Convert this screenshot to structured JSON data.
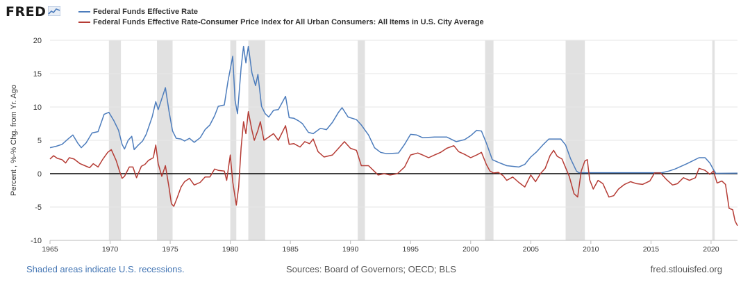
{
  "header": {
    "logo_text": "FRED",
    "logo_icon": "chart-line-icon"
  },
  "legend": [
    {
      "label": "Federal Funds Effective Rate",
      "color": "#4c7cbc"
    },
    {
      "label": "Federal Funds Effective Rate-Consumer Price Index for All Urban Consumers: All Items in U.S. City Average",
      "color": "#b53b34"
    }
  ],
  "footer": {
    "recessions_note": "Shaded areas indicate U.S. recessions.",
    "sources": "Sources: Board of Governors; OECD; BLS",
    "site": "fred.stlouisfed.org"
  },
  "chart_data": {
    "type": "line",
    "ylabel": "Percent , %-% Chg. from Yr. Ago",
    "xlim": [
      1965,
      2022.2
    ],
    "ylim": [
      -10,
      20
    ],
    "y_ticks": [
      -10,
      -5,
      0,
      5,
      10,
      15,
      20
    ],
    "x_ticks": [
      1965,
      1970,
      1975,
      1980,
      1985,
      1990,
      1995,
      2000,
      2005,
      2010,
      2015,
      2020
    ],
    "grid": "horizontal",
    "zero_line": true,
    "recessions": [
      [
        1969.9,
        1970.9
      ],
      [
        1973.9,
        1975.2
      ],
      [
        1980.0,
        1980.5
      ],
      [
        1981.5,
        1982.9
      ],
      [
        1990.6,
        1991.2
      ],
      [
        2001.2,
        2001.9
      ],
      [
        2007.9,
        2009.5
      ],
      [
        2020.1,
        2020.3
      ]
    ],
    "series": [
      {
        "name": "Federal Funds Effective Rate",
        "color": "#4c7cbc",
        "points": [
          [
            1965.0,
            3.9
          ],
          [
            1965.5,
            4.1
          ],
          [
            1966.0,
            4.4
          ],
          [
            1966.5,
            5.2
          ],
          [
            1966.9,
            5.8
          ],
          [
            1967.3,
            4.6
          ],
          [
            1967.6,
            3.9
          ],
          [
            1968.0,
            4.6
          ],
          [
            1968.5,
            6.1
          ],
          [
            1969.0,
            6.3
          ],
          [
            1969.5,
            8.9
          ],
          [
            1969.9,
            9.2
          ],
          [
            1970.3,
            8.0
          ],
          [
            1970.7,
            6.5
          ],
          [
            1971.0,
            4.4
          ],
          [
            1971.2,
            3.7
          ],
          [
            1971.5,
            5.0
          ],
          [
            1971.8,
            5.6
          ],
          [
            1972.0,
            3.6
          ],
          [
            1972.3,
            4.2
          ],
          [
            1972.7,
            4.9
          ],
          [
            1973.0,
            5.9
          ],
          [
            1973.5,
            8.5
          ],
          [
            1973.8,
            10.8
          ],
          [
            1974.0,
            9.6
          ],
          [
            1974.6,
            12.9
          ],
          [
            1974.9,
            9.4
          ],
          [
            1975.2,
            6.4
          ],
          [
            1975.5,
            5.3
          ],
          [
            1975.9,
            5.2
          ],
          [
            1976.2,
            4.9
          ],
          [
            1976.6,
            5.3
          ],
          [
            1977.0,
            4.7
          ],
          [
            1977.5,
            5.4
          ],
          [
            1977.9,
            6.6
          ],
          [
            1978.3,
            7.3
          ],
          [
            1978.7,
            8.7
          ],
          [
            1979.0,
            10.1
          ],
          [
            1979.5,
            10.3
          ],
          [
            1979.8,
            13.8
          ],
          [
            1980.2,
            17.6
          ],
          [
            1980.4,
            11.0
          ],
          [
            1980.6,
            9.0
          ],
          [
            1980.9,
            15.9
          ],
          [
            1981.1,
            19.1
          ],
          [
            1981.3,
            16.6
          ],
          [
            1981.5,
            19.1
          ],
          [
            1981.8,
            15.1
          ],
          [
            1982.1,
            13.2
          ],
          [
            1982.3,
            14.9
          ],
          [
            1982.6,
            10.1
          ],
          [
            1982.9,
            9.0
          ],
          [
            1983.2,
            8.5
          ],
          [
            1983.6,
            9.5
          ],
          [
            1984.0,
            9.6
          ],
          [
            1984.6,
            11.6
          ],
          [
            1984.9,
            8.4
          ],
          [
            1985.3,
            8.3
          ],
          [
            1985.7,
            7.9
          ],
          [
            1986.0,
            7.5
          ],
          [
            1986.5,
            6.2
          ],
          [
            1986.9,
            6.0
          ],
          [
            1987.5,
            6.8
          ],
          [
            1988.0,
            6.6
          ],
          [
            1988.5,
            7.7
          ],
          [
            1989.0,
            9.2
          ],
          [
            1989.3,
            9.9
          ],
          [
            1989.8,
            8.5
          ],
          [
            1990.5,
            8.1
          ],
          [
            1990.9,
            7.3
          ],
          [
            1991.5,
            5.8
          ],
          [
            1992.0,
            3.9
          ],
          [
            1992.5,
            3.2
          ],
          [
            1993.0,
            3.0
          ],
          [
            1994.0,
            3.1
          ],
          [
            1994.5,
            4.4
          ],
          [
            1995.0,
            5.9
          ],
          [
            1995.5,
            5.8
          ],
          [
            1996.0,
            5.4
          ],
          [
            1997.0,
            5.5
          ],
          [
            1998.0,
            5.5
          ],
          [
            1998.8,
            4.8
          ],
          [
            1999.5,
            5.1
          ],
          [
            2000.0,
            5.7
          ],
          [
            2000.5,
            6.5
          ],
          [
            2000.9,
            6.4
          ],
          [
            2001.3,
            4.6
          ],
          [
            2001.8,
            2.1
          ],
          [
            2002.3,
            1.7
          ],
          [
            2003.0,
            1.2
          ],
          [
            2004.0,
            1.0
          ],
          [
            2004.5,
            1.4
          ],
          [
            2005.0,
            2.5
          ],
          [
            2005.5,
            3.3
          ],
          [
            2006.0,
            4.3
          ],
          [
            2006.5,
            5.2
          ],
          [
            2007.5,
            5.2
          ],
          [
            2007.9,
            4.3
          ],
          [
            2008.3,
            2.3
          ],
          [
            2008.8,
            0.4
          ],
          [
            2009.0,
            0.15
          ],
          [
            2010.0,
            0.15
          ],
          [
            2015.9,
            0.15
          ],
          [
            2016.5,
            0.4
          ],
          [
            2017.0,
            0.7
          ],
          [
            2018.0,
            1.5
          ],
          [
            2019.0,
            2.4
          ],
          [
            2019.5,
            2.4
          ],
          [
            2019.9,
            1.6
          ],
          [
            2020.2,
            0.6
          ],
          [
            2020.4,
            0.05
          ],
          [
            2022.2,
            0.08
          ]
        ]
      },
      {
        "name": "Federal Funds Effective Rate-Consumer Price Index for All Urban Consumers: All Items in U.S. City Average",
        "color": "#b53b34",
        "points": [
          [
            1965.0,
            2.2
          ],
          [
            1965.3,
            2.7
          ],
          [
            1965.6,
            2.3
          ],
          [
            1966.0,
            2.1
          ],
          [
            1966.3,
            1.6
          ],
          [
            1966.6,
            2.4
          ],
          [
            1967.0,
            2.2
          ],
          [
            1967.5,
            1.5
          ],
          [
            1967.9,
            1.2
          ],
          [
            1968.3,
            0.9
          ],
          [
            1968.6,
            1.5
          ],
          [
            1969.0,
            1.0
          ],
          [
            1969.4,
            2.2
          ],
          [
            1969.8,
            3.2
          ],
          [
            1970.1,
            3.6
          ],
          [
            1970.5,
            2.0
          ],
          [
            1970.8,
            0.3
          ],
          [
            1971.0,
            -0.7
          ],
          [
            1971.2,
            -0.4
          ],
          [
            1971.6,
            1.0
          ],
          [
            1971.9,
            1.0
          ],
          [
            1972.2,
            -0.6
          ],
          [
            1972.6,
            1.1
          ],
          [
            1972.9,
            1.4
          ],
          [
            1973.2,
            2.0
          ],
          [
            1973.6,
            2.4
          ],
          [
            1973.8,
            4.3
          ],
          [
            1974.0,
            1.5
          ],
          [
            1974.3,
            -0.4
          ],
          [
            1974.6,
            1.2
          ],
          [
            1974.9,
            -2.0
          ],
          [
            1975.1,
            -4.5
          ],
          [
            1975.3,
            -4.9
          ],
          [
            1975.6,
            -3.5
          ],
          [
            1975.9,
            -2.0
          ],
          [
            1976.2,
            -1.2
          ],
          [
            1976.6,
            -0.7
          ],
          [
            1977.0,
            -1.7
          ],
          [
            1977.5,
            -1.3
          ],
          [
            1977.9,
            -0.5
          ],
          [
            1978.3,
            -0.5
          ],
          [
            1978.7,
            0.7
          ],
          [
            1979.0,
            0.5
          ],
          [
            1979.5,
            0.4
          ],
          [
            1979.7,
            -1.0
          ],
          [
            1980.0,
            2.8
          ],
          [
            1980.2,
            -1.2
          ],
          [
            1980.5,
            -4.7
          ],
          [
            1980.7,
            -2.0
          ],
          [
            1980.9,
            3.9
          ],
          [
            1981.1,
            7.8
          ],
          [
            1981.3,
            6.0
          ],
          [
            1981.5,
            9.3
          ],
          [
            1981.8,
            6.5
          ],
          [
            1982.0,
            5.0
          ],
          [
            1982.3,
            6.5
          ],
          [
            1982.5,
            7.8
          ],
          [
            1982.8,
            5.0
          ],
          [
            1983.2,
            5.5
          ],
          [
            1983.6,
            6.0
          ],
          [
            1984.0,
            5.0
          ],
          [
            1984.6,
            7.2
          ],
          [
            1984.9,
            4.4
          ],
          [
            1985.3,
            4.5
          ],
          [
            1985.8,
            4.0
          ],
          [
            1986.2,
            4.8
          ],
          [
            1986.6,
            4.5
          ],
          [
            1986.9,
            5.2
          ],
          [
            1987.3,
            3.3
          ],
          [
            1987.8,
            2.5
          ],
          [
            1988.5,
            2.8
          ],
          [
            1989.0,
            3.8
          ],
          [
            1989.5,
            4.8
          ],
          [
            1990.0,
            3.8
          ],
          [
            1990.5,
            3.5
          ],
          [
            1990.9,
            1.2
          ],
          [
            1991.5,
            1.2
          ],
          [
            1991.9,
            0.5
          ],
          [
            1992.3,
            -0.2
          ],
          [
            1992.8,
            0.0
          ],
          [
            1993.3,
            -0.2
          ],
          [
            1993.9,
            0.0
          ],
          [
            1994.5,
            1.0
          ],
          [
            1995.0,
            2.8
          ],
          [
            1995.6,
            3.1
          ],
          [
            1996.0,
            2.8
          ],
          [
            1996.5,
            2.4
          ],
          [
            1997.0,
            2.8
          ],
          [
            1997.5,
            3.2
          ],
          [
            1998.0,
            3.8
          ],
          [
            1998.6,
            4.2
          ],
          [
            1999.0,
            3.3
          ],
          [
            1999.5,
            2.9
          ],
          [
            2000.0,
            2.4
          ],
          [
            2000.5,
            2.8
          ],
          [
            2000.9,
            3.2
          ],
          [
            2001.3,
            1.4
          ],
          [
            2001.6,
            0.4
          ],
          [
            2001.9,
            0.1
          ],
          [
            2002.3,
            0.2
          ],
          [
            2002.7,
            -0.3
          ],
          [
            2003.0,
            -1.0
          ],
          [
            2003.5,
            -0.5
          ],
          [
            2004.0,
            -1.3
          ],
          [
            2004.5,
            -2.0
          ],
          [
            2005.0,
            -0.2
          ],
          [
            2005.4,
            -1.2
          ],
          [
            2005.8,
            0.0
          ],
          [
            2006.2,
            0.8
          ],
          [
            2006.6,
            2.7
          ],
          [
            2006.9,
            3.5
          ],
          [
            2007.2,
            2.6
          ],
          [
            2007.6,
            2.2
          ],
          [
            2007.9,
            0.9
          ],
          [
            2008.2,
            -0.4
          ],
          [
            2008.6,
            -3.0
          ],
          [
            2008.9,
            -3.5
          ],
          [
            2009.2,
            0.4
          ],
          [
            2009.5,
            1.9
          ],
          [
            2009.7,
            2.1
          ],
          [
            2009.9,
            -0.9
          ],
          [
            2010.2,
            -2.3
          ],
          [
            2010.6,
            -1.0
          ],
          [
            2011.0,
            -1.5
          ],
          [
            2011.5,
            -3.5
          ],
          [
            2011.9,
            -3.3
          ],
          [
            2012.3,
            -2.3
          ],
          [
            2012.8,
            -1.6
          ],
          [
            2013.3,
            -1.2
          ],
          [
            2013.8,
            -1.5
          ],
          [
            2014.3,
            -1.6
          ],
          [
            2014.9,
            -1.1
          ],
          [
            2015.3,
            0.1
          ],
          [
            2015.8,
            0.1
          ],
          [
            2016.3,
            -0.9
          ],
          [
            2016.8,
            -1.7
          ],
          [
            2017.2,
            -1.5
          ],
          [
            2017.7,
            -0.6
          ],
          [
            2018.2,
            -1.0
          ],
          [
            2018.7,
            -0.6
          ],
          [
            2019.0,
            0.8
          ],
          [
            2019.5,
            0.5
          ],
          [
            2019.9,
            -0.1
          ],
          [
            2020.2,
            0.4
          ],
          [
            2020.5,
            -1.4
          ],
          [
            2020.9,
            -1.1
          ],
          [
            2021.2,
            -1.6
          ],
          [
            2021.5,
            -5.2
          ],
          [
            2021.8,
            -5.4
          ],
          [
            2022.0,
            -7.1
          ],
          [
            2022.2,
            -7.8
          ]
        ]
      }
    ]
  }
}
